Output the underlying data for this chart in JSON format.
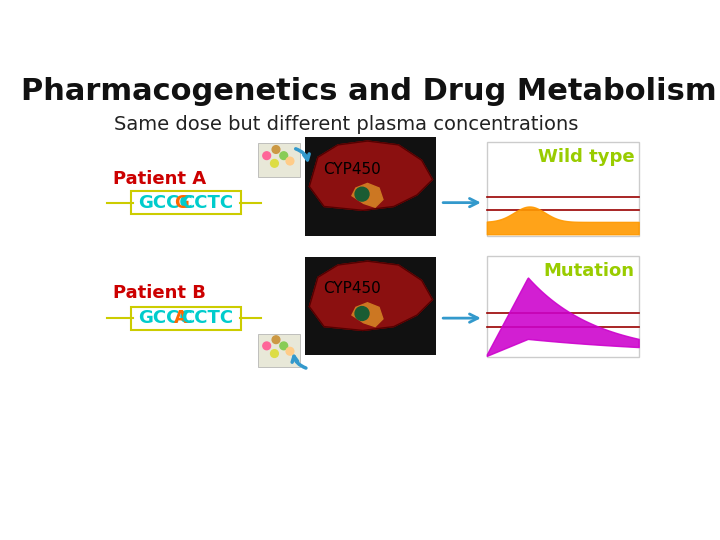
{
  "title": "Pharmacogenetics and Drug Metabolism",
  "subtitle": "Same dose but different plasma concentrations",
  "title_fontsize": 22,
  "subtitle_fontsize": 14,
  "background_color": "#ffffff",
  "patient_a_label": "Patient A",
  "patient_b_label": "Patient B",
  "patient_label_color": "#cc0000",
  "patient_label_fontsize": 13,
  "seq_a_parts": [
    "GCCC",
    "G",
    "CCTC"
  ],
  "seq_b_parts": [
    "GCCC",
    "A",
    "CCTC"
  ],
  "seq_color_normal": "#00cccc",
  "seq_color_highlight_a": "#ff6600",
  "seq_color_highlight_b": "#ff6600",
  "seq_box_color": "#cccc00",
  "seq_fontsize": 13,
  "cyp450_label": "CYP450",
  "cyp450_fontsize": 11,
  "wildtype_label": "Wild type",
  "mutation_label": "Mutation",
  "label_color_green": "#99cc00",
  "label_fontsize": 13,
  "arrow_color": "#3399cc",
  "line_color_dark_red": "#990000",
  "orange_fill": "#ff9900",
  "magenta_fill": "#cc00cc",
  "box_edge_color": "#cccccc"
}
